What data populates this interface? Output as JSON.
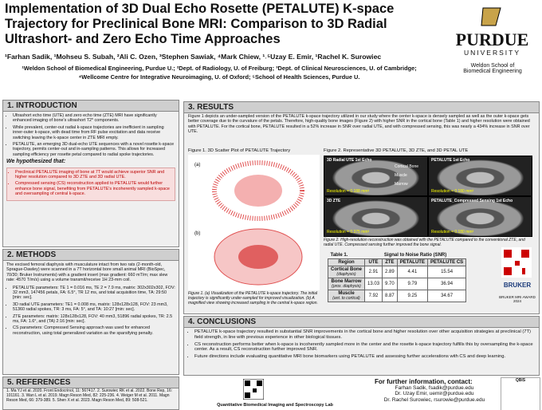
{
  "header": {
    "title": "Implementation of 3D Dual Echo Rosette (PETALUTE) K-space Trajectory for Preclinical Bone MRI: Comparison to 3D Radial Ultrashort- and Zero Echo Time Approaches",
    "authors": "¹Farhan Sadik, ¹Mohseu S. Subah, ²Ali C. Ozen, ³Stephen Sawiak, ⁴Mark Chiew, ¹˒⁵Uzay E. Emir, ¹Rachel K. Surowiec",
    "affiliations": "¹Weldon School of Biomedical Engineering, Purdue U.; ²Dept. of Radiology, U. of Freiburg; ³Dept. of Clinical Neurosciences, U. of Cambridge; ⁴Wellcome Centre for Integrative Neuroimaging, U. of Oxford; ⁵School of Health Sciences, Purdue U.",
    "logo": "PURDUE",
    "logo_sub": "UNIVERSITY",
    "school": "Weldon School of Biomedical Engineering"
  },
  "introduction": {
    "heading": "1. INTRODUCTION",
    "paragraphs": [
      "Ultrashort echo time (UTE) and zero echo time (ZTE) MRI have significantly enhanced imaging of bone's ultrashort T2* components.",
      "While prevalent, center-out radial k-space trajectories are inefficient in sampling inner-outer k-space, with dead time from RF pulse excitation and data receive switching leaving the k-space center in ZTE MRI empty.",
      "PETALUTE, an emerging 3D dual-echo UTE sequences with a novel rosette k-space trajectory, permits center-out and in-sampling patterns. This allows for increased sampling efficiency per rosette petal compared to radial spoke trajectories."
    ],
    "hypothesis_heading": "We hypothesized that:",
    "hypotheses": [
      "Preclinical PETALUTE imaging of bone at 7T would achieve superior SNR and higher resolution compared to 3D ZTE and 3D radial UTE.",
      "Compressed sensing (CS) reconstruction applied to PETALUTE would further enhance bone signal, benefiting from PETALUTE's incoherently sampled k-space and oversampling of central k-space."
    ]
  },
  "methods": {
    "heading": "2. METHODS",
    "intro": "The excised femoral diaphysis with musculature intact from two rats (2-month-old, Sprague-Dawley) were scanned in a 7T horizontal bore small animal MRI (BioSpec, 70/30; Bruker Instruments) with a gradient insert (max gradient: 660 mT/m; max slew rate: 4570 T/m/s) using a volume transmit/receive 1H 23-mm coil.",
    "items": [
      "PETALUTE parameters: TE 1 = 0.016 ms, TE 2 = 7.9 ms, matrix: 302x302x302, FOV: 32 mm3, 147456 petals, FA: 6.5°, TR 12 ms, and total acquisition time, TA: 29:50 [min: sec].",
      "3D radial UTE parameters: TE1 = 0.008 ms, matrix: 128x128x128, FOV: 23 mm3, 51360 radial spokes, TR: 3 ms, FA: 5°, and TA: 10:27 [min: sec].",
      "ZTE parameters: matrix: 128x128x128, FOV: 40 mm3, 51896 radial spokes, TR: 2.5 ms, FA: 1.6°, and (TA) 2:16 [min: sec].",
      "CS parameters: Compressed Sensing approach was used for enhanced reconstruction, using total generalized variation as the sparsifying penalty."
    ]
  },
  "references": {
    "heading": "5. REFERENCES",
    "text": "1. Ma YJ et al. 2020. Front Endocrinol, 11: 567417. 2. Surowiec RK et al. 2022. Bone Rep, 16: 101161. 3. Wan L et al. 2019. Magn Reson Med, 82: 225-236. 4. Weiger M et al. 2011. Magn Reson Med, 66: 379-389. 5. Shen X et al. 2023. Magn Reson Med, 89: 508-521."
  },
  "results": {
    "heading": "3. RESULTS",
    "text": "Figure 1 depicts an under-sampled version of the PETALUTE k-space trajectory utilized in our study where the center k-space is densely sampled as well as the outer k-space gets better coverage due to the curvature of the petals. Therefore, high-quality bone images (Figure 2) with higher SNR in the cortical bone (Table 1) and higher resolution were obtained with PETALUTE. For the cortical bone, PETALUTE resulted in a 52% increase in SNR over radial UTE, and with compressed sensing, this was nearly a 434% increase in SNR over UTE.",
    "fig1_caption": "Figure 1. 3D Scatter Plot of PETALUTE Trajectory",
    "fig1_labels": [
      "(a)",
      "(b)"
    ],
    "fig1_note": "Figure 1. (a) Visualization of the PETALUTE k-space trajectory. The initial trajectory is significantly under-sampled for improved visualization. (b) A magnified view showing increased sampling in the central k-space region.",
    "fig2_caption": "Figure 2. Representative 3D PETALUTE, 3D ZTE, and 3D PETAL UTE",
    "fig2_panels": [
      {
        "label": "3D Radial UTE 1st Echo",
        "res": "Resolution = 0.188 mm³"
      },
      {
        "label": "PETALUTE 1st Echo",
        "res": "Resolution = 0.180 mm³"
      },
      {
        "label": "3D ZTE",
        "res": "Resolution = 0.375 mm³"
      },
      {
        "label": "PETALUTE_Compressed Sensing 1st Echo",
        "res": "Resolution = 0.180 mm³"
      }
    ],
    "fig2_tissues": [
      "Cortical Bone",
      "Muscle",
      "Marrow"
    ],
    "fig2_note": "Figure 2. High-resolution reconstruction was obtained with the PETALUTE compared to the conventional ZTE, and radial UTE. Compressed sensing further improved the bone signal.",
    "table": {
      "caption": "Table 1.",
      "title": "Signal to Noise Ratio (SNR)",
      "columns": [
        "Region",
        "UTE",
        "ZTE",
        "PETALUTE",
        "PETALUTE CS"
      ],
      "rows": [
        {
          "region": "Cortical Bone",
          "sub": "(diaphysis)",
          "cells": [
            "2.91",
            "2.89",
            "4.41",
            "15.54"
          ]
        },
        {
          "region": "Bone Marrow",
          "sub": "(prox. diaphysis)",
          "cells": [
            "13.03",
            "9.70",
            "9.79",
            "36.94"
          ]
        },
        {
          "region": "Muscle",
          "sub": "(ant. to cortical)",
          "cells": [
            "7.92",
            "8.87",
            "9.25",
            "34.67"
          ]
        }
      ]
    },
    "award": "BRUKER MRI AWARD 2024",
    "bruker": "BRUKER"
  },
  "conclusions": {
    "heading": "4. CONCLUSIONS",
    "items": [
      "PETALUTE k-space trajectory resulted in substantial SNR improvements in the cortical bone and higher resolution over other acquisition strategies at preclinical (7T) field strength, in line with previous experience in other biological tissues.",
      "CS reconstruction performs better when k-space is incoherently sampled more in the center and the rosette k-space trajectory fulfills this by oversampling the k-space center. As a result, CS reconstruction further improved SNR.",
      "Future directions include evaluating quantitative MRI bone biomarkers using PETALUTE and assessing further accelerations with CS and deep learning."
    ]
  },
  "contact": {
    "heading": "For further information, contact:",
    "lines": [
      "Farhan Sadik, fsadik@purdue.edu",
      "Dr. Uzay Emir, uemir@purdue.edu",
      "Dr. Rachel Surowiec, rsurowie@purdue.edu"
    ]
  },
  "footer": "Quantitative Biomedical Imaging and Spectroscopy Lab",
  "qbis": "QBIS"
}
